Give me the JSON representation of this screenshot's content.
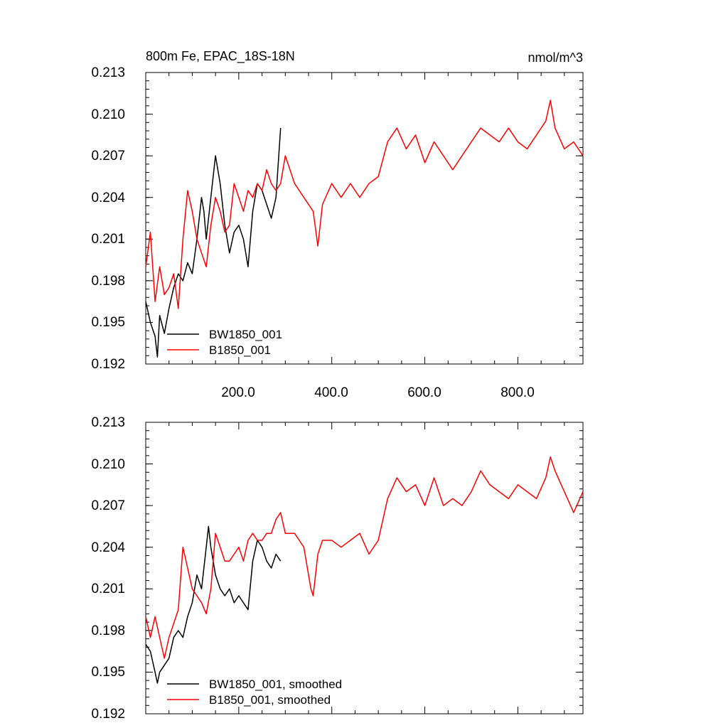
{
  "chart_data": [
    {
      "type": "line",
      "title": "800m Fe, EPAC_18S-18N",
      "units": "nmol/m^3",
      "xlim": [
        0,
        940
      ],
      "ylim": [
        0.192,
        0.213
      ],
      "x_ticks": [
        200,
        400,
        600,
        800
      ],
      "x_tick_labels": [
        "200.0",
        "400.0",
        "600.0",
        "800.0"
      ],
      "y_ticks": [
        0.192,
        0.195,
        0.198,
        0.201,
        0.204,
        0.207,
        0.21,
        0.213
      ],
      "y_tick_labels": [
        "0.192",
        "0.195",
        "0.198",
        "0.201",
        "0.204",
        "0.207",
        "0.210",
        "0.213"
      ],
      "legend_position": "bottom-left",
      "series": [
        {
          "name": "BW1850_001",
          "color": "#000000",
          "x": [
            0,
            10,
            20,
            25,
            30,
            40,
            50,
            60,
            70,
            80,
            90,
            100,
            110,
            120,
            125,
            130,
            140,
            150,
            160,
            170,
            180,
            190,
            200,
            210,
            220,
            230,
            240,
            250,
            260,
            270,
            280,
            290
          ],
          "y": [
            0.1965,
            0.195,
            0.194,
            0.1925,
            0.1955,
            0.1942,
            0.196,
            0.1975,
            0.1985,
            0.198,
            0.1993,
            0.1985,
            0.201,
            0.204,
            0.203,
            0.201,
            0.204,
            0.207,
            0.205,
            0.202,
            0.2,
            0.2015,
            0.202,
            0.201,
            0.199,
            0.203,
            0.205,
            0.2045,
            0.2035,
            0.2025,
            0.204,
            0.209
          ]
        },
        {
          "name": "B1850_001",
          "color": "#ff0000",
          "x": [
            0,
            10,
            20,
            30,
            40,
            50,
            60,
            70,
            80,
            90,
            100,
            110,
            120,
            130,
            140,
            150,
            160,
            170,
            180,
            190,
            200,
            210,
            220,
            230,
            240,
            250,
            260,
            270,
            280,
            290,
            300,
            320,
            340,
            360,
            370,
            380,
            400,
            420,
            440,
            460,
            480,
            500,
            520,
            540,
            560,
            580,
            600,
            620,
            640,
            660,
            680,
            700,
            720,
            740,
            760,
            780,
            800,
            820,
            840,
            860,
            870,
            880,
            900,
            920,
            940
          ],
          "y": [
            0.199,
            0.2015,
            0.1965,
            0.199,
            0.197,
            0.1975,
            0.1985,
            0.196,
            0.201,
            0.2045,
            0.203,
            0.201,
            0.2,
            0.199,
            0.202,
            0.204,
            0.203,
            0.2015,
            0.202,
            0.205,
            0.204,
            0.203,
            0.2045,
            0.204,
            0.205,
            0.2045,
            0.206,
            0.205,
            0.2045,
            0.205,
            0.207,
            0.205,
            0.204,
            0.203,
            0.2005,
            0.2035,
            0.205,
            0.204,
            0.205,
            0.204,
            0.205,
            0.2055,
            0.208,
            0.209,
            0.2075,
            0.2085,
            0.2065,
            0.208,
            0.207,
            0.206,
            0.207,
            0.208,
            0.209,
            0.2085,
            0.208,
            0.209,
            0.208,
            0.2075,
            0.2085,
            0.2095,
            0.211,
            0.209,
            0.2075,
            0.208,
            0.207
          ]
        }
      ]
    },
    {
      "type": "line",
      "title": "",
      "xlim": [
        0,
        940
      ],
      "ylim": [
        0.192,
        0.213
      ],
      "y_ticks": [
        0.192,
        0.195,
        0.198,
        0.201,
        0.204,
        0.207,
        0.21,
        0.213
      ],
      "y_tick_labels": [
        "0.192",
        "0.195",
        "0.198",
        "0.201",
        "0.204",
        "0.207",
        "0.210",
        "0.213"
      ],
      "legend_position": "bottom-left",
      "series": [
        {
          "name": "BW1850_001, smoothed",
          "color": "#000000",
          "x": [
            0,
            10,
            20,
            25,
            30,
            40,
            50,
            60,
            70,
            80,
            90,
            100,
            110,
            120,
            130,
            135,
            140,
            150,
            160,
            170,
            180,
            190,
            200,
            210,
            220,
            230,
            240,
            250,
            260,
            270,
            280,
            290
          ],
          "y": [
            0.197,
            0.1965,
            0.195,
            0.1942,
            0.195,
            0.1955,
            0.196,
            0.1975,
            0.198,
            0.1975,
            0.199,
            0.2,
            0.202,
            0.201,
            0.204,
            0.2055,
            0.204,
            0.202,
            0.201,
            0.2005,
            0.201,
            0.2,
            0.2005,
            0.2,
            0.1995,
            0.203,
            0.2045,
            0.204,
            0.203,
            0.2025,
            0.2035,
            0.203
          ]
        },
        {
          "name": "B1850_001, smoothed",
          "color": "#ff0000",
          "x": [
            0,
            10,
            20,
            30,
            40,
            50,
            60,
            70,
            80,
            90,
            100,
            110,
            120,
            130,
            140,
            150,
            160,
            170,
            180,
            190,
            200,
            210,
            220,
            230,
            240,
            250,
            260,
            270,
            280,
            290,
            300,
            320,
            340,
            355,
            360,
            370,
            380,
            400,
            420,
            440,
            460,
            480,
            500,
            520,
            540,
            560,
            580,
            600,
            620,
            640,
            660,
            680,
            700,
            720,
            740,
            760,
            780,
            800,
            820,
            840,
            860,
            870,
            880,
            900,
            920,
            940
          ],
          "y": [
            0.199,
            0.1975,
            0.199,
            0.1975,
            0.196,
            0.1975,
            0.1985,
            0.1995,
            0.204,
            0.2025,
            0.201,
            0.2005,
            0.2,
            0.1992,
            0.201,
            0.205,
            0.204,
            0.203,
            0.203,
            0.2035,
            0.204,
            0.203,
            0.2045,
            0.205,
            0.2045,
            0.2045,
            0.205,
            0.205,
            0.206,
            0.2065,
            0.205,
            0.205,
            0.204,
            0.201,
            0.2005,
            0.2035,
            0.2045,
            0.2045,
            0.204,
            0.2045,
            0.205,
            0.2035,
            0.2045,
            0.2075,
            0.209,
            0.208,
            0.2085,
            0.207,
            0.209,
            0.207,
            0.2075,
            0.207,
            0.208,
            0.2095,
            0.2085,
            0.208,
            0.2075,
            0.2085,
            0.208,
            0.2075,
            0.209,
            0.2105,
            0.2095,
            0.208,
            0.2065,
            0.208
          ]
        }
      ]
    }
  ]
}
